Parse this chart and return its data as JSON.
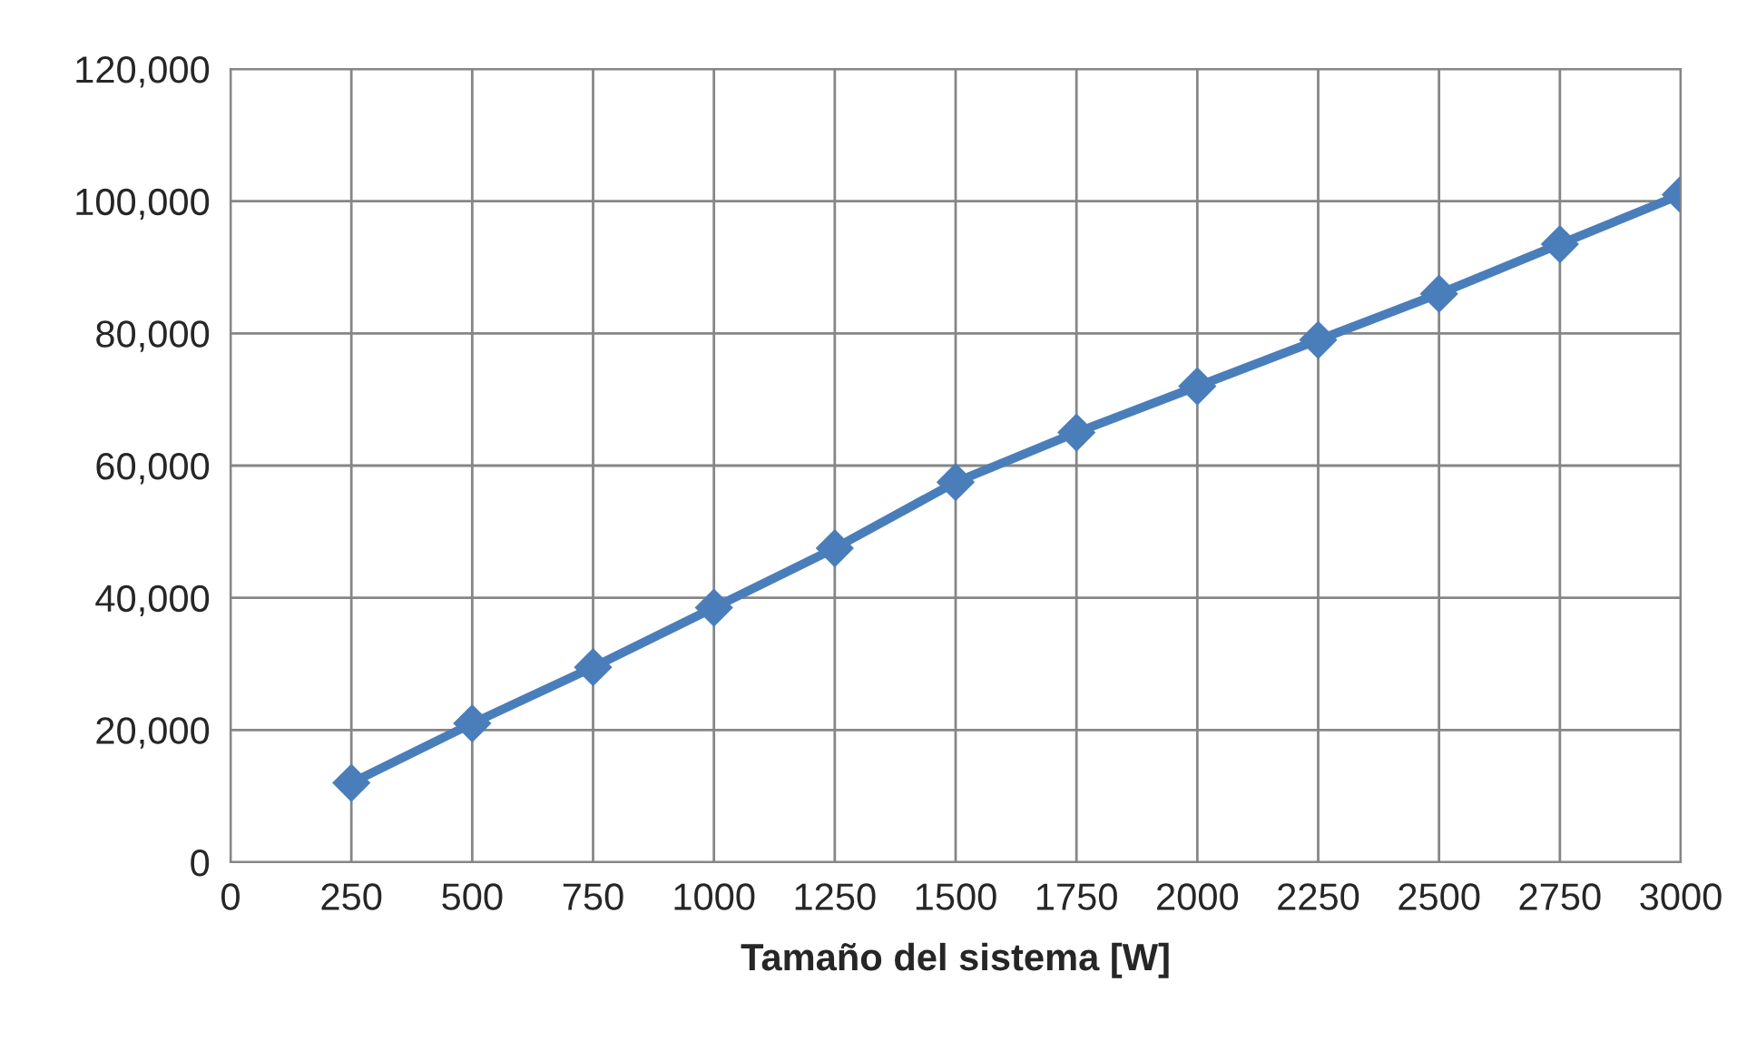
{
  "chart_data": {
    "type": "line",
    "xlabel": "Tamaño del sistema [W]",
    "x": [
      250,
      500,
      750,
      1000,
      1250,
      1500,
      1750,
      2000,
      2250,
      2500,
      2750,
      3000
    ],
    "series": [
      {
        "color": "#4a7ebb",
        "values": [
          12000,
          21000,
          29500,
          38500,
          47500,
          57500,
          65000,
          72000,
          79000,
          86000,
          93500,
          101000
        ]
      }
    ],
    "xlim": [
      0,
      3000
    ],
    "xticks": [
      0,
      250,
      500,
      750,
      1000,
      1250,
      1500,
      1750,
      2000,
      2250,
      2500,
      2750,
      3000
    ],
    "ylim": [
      0,
      120000
    ],
    "yticks": [
      0,
      {
        "value": 20000,
        "label": "20,000"
      },
      {
        "value": 40000,
        "label": "40,000"
      },
      {
        "value": 60000,
        "label": "60,000"
      },
      {
        "value": 80000,
        "label": "80,000"
      },
      {
        "value": 100000,
        "label": "100,000"
      },
      {
        "value": 120000,
        "label": "120,000"
      }
    ],
    "grid": true,
    "marker": "diamond",
    "line_style": "solid"
  }
}
